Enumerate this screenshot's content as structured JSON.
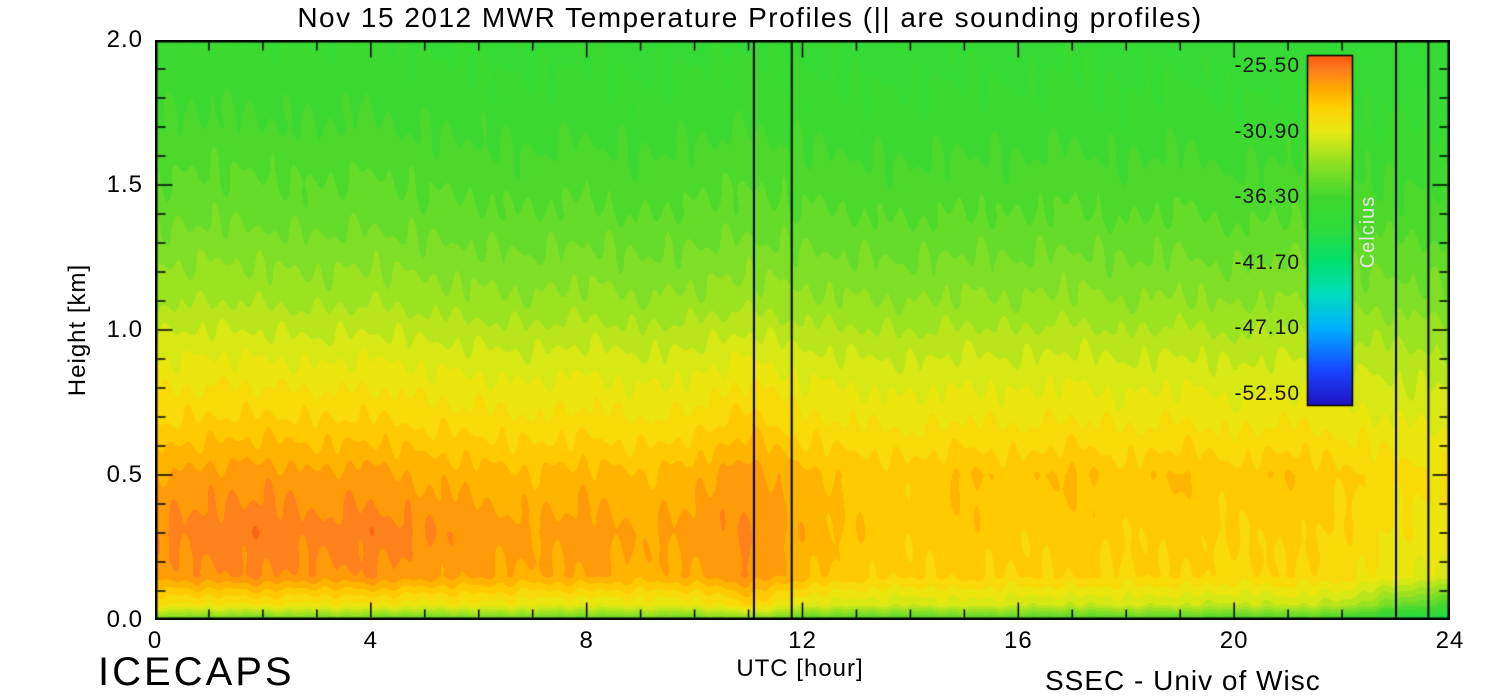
{
  "chart_data": {
    "type": "heatmap",
    "title": "Nov 15 2012 MWR Temperature Profiles (|| are sounding profiles)",
    "xlabel": "UTC [hour]",
    "ylabel": "Height [km]",
    "x_range": [
      0,
      24
    ],
    "y_range": [
      0.0,
      2.0
    ],
    "x_ticks": {
      "major": [
        0,
        4,
        8,
        12,
        16,
        20,
        24
      ],
      "labels": [
        "0",
        "4",
        "8",
        "12",
        "16",
        "20",
        "24"
      ],
      "minor_step": 1
    },
    "y_ticks": {
      "major": [
        0.0,
        0.5,
        1.0,
        1.5,
        2.0
      ],
      "labels": [
        "0.0",
        "0.5",
        "1.0",
        "1.5",
        "2.0"
      ],
      "minor_step": 0.1
    },
    "sounding_lines_utc": [
      11.1,
      11.8,
      23.0,
      23.6
    ],
    "contour_step_c": 0.9,
    "grid": {
      "hours": [
        0,
        1,
        2,
        3,
        4,
        5,
        6,
        7,
        8,
        9,
        10,
        11,
        12,
        13,
        14,
        15,
        16,
        17,
        18,
        19,
        20,
        21,
        22,
        23,
        24
      ],
      "heights_km": [
        0.0,
        0.05,
        0.15,
        0.3,
        0.5,
        0.7,
        0.9,
        1.1,
        1.4,
        1.7,
        2.0
      ],
      "temps_c": [
        [
          -34.6,
          -34.9,
          -35.1,
          -34.7,
          -35.0,
          -35.3,
          -34.9,
          -35.1,
          -35.4,
          -35.0,
          -35.2,
          -34.0,
          -35.5,
          -35.9,
          -36.1,
          -35.7,
          -36.0,
          -36.3,
          -35.9,
          -36.1,
          -36.4,
          -36.2,
          -36.6,
          -39.5,
          -41.0
        ],
        [
          -30.0,
          -30.3,
          -30.1,
          -30.4,
          -30.2,
          -30.6,
          -30.3,
          -30.7,
          -31.0,
          -30.6,
          -30.8,
          -29.2,
          -31.1,
          -31.4,
          -31.7,
          -31.3,
          -31.6,
          -31.9,
          -31.5,
          -31.8,
          -32.0,
          -31.8,
          -32.2,
          -34.5,
          -36.0
        ],
        [
          -26.9,
          -26.5,
          -26.3,
          -26.7,
          -26.4,
          -26.9,
          -27.2,
          -27.5,
          -27.2,
          -27.7,
          -27.3,
          -26.5,
          -27.9,
          -28.7,
          -29.1,
          -28.8,
          -29.2,
          -28.9,
          -29.3,
          -29.0,
          -29.4,
          -29.1,
          -29.5,
          -30.6,
          -31.2
        ],
        [
          -26.3,
          -25.9,
          -25.7,
          -26.1,
          -25.8,
          -26.4,
          -26.7,
          -27.1,
          -26.8,
          -27.3,
          -26.9,
          -26.3,
          -27.6,
          -28.4,
          -28.8,
          -28.5,
          -28.9,
          -28.6,
          -29.0,
          -28.7,
          -29.1,
          -28.8,
          -29.2,
          -30.1,
          -30.6
        ],
        [
          -27.3,
          -27.0,
          -26.8,
          -27.2,
          -26.9,
          -27.5,
          -27.8,
          -28.1,
          -27.8,
          -28.2,
          -27.7,
          -26.7,
          -28.0,
          -28.4,
          -28.7,
          -28.1,
          -28.6,
          -28.0,
          -28.7,
          -28.1,
          -28.8,
          -28.2,
          -28.9,
          -29.6,
          -30.0
        ],
        [
          -29.3,
          -29.1,
          -29.0,
          -29.2,
          -29.1,
          -29.5,
          -29.7,
          -30.0,
          -29.7,
          -30.1,
          -29.8,
          -28.8,
          -29.9,
          -30.2,
          -30.4,
          -30.1,
          -30.3,
          -30.0,
          -30.4,
          -30.1,
          -30.5,
          -30.2,
          -30.5,
          -31.0,
          -31.2
        ],
        [
          -31.0,
          -30.8,
          -30.9,
          -31.1,
          -30.9,
          -31.2,
          -31.4,
          -31.6,
          -31.3,
          -31.7,
          -31.4,
          -30.8,
          -31.5,
          -31.7,
          -31.9,
          -31.6,
          -31.8,
          -31.5,
          -31.9,
          -31.6,
          -32.0,
          -31.7,
          -32.0,
          -32.3,
          -32.5
        ],
        [
          -32.9,
          -32.7,
          -32.8,
          -33.0,
          -32.8,
          -33.1,
          -33.3,
          -33.5,
          -33.2,
          -33.6,
          -33.3,
          -33.0,
          -33.4,
          -33.5,
          -33.7,
          -33.4,
          -33.6,
          -33.3,
          -33.7,
          -33.4,
          -33.8,
          -33.5,
          -33.8,
          -34.0,
          -34.2
        ],
        [
          -34.9,
          -34.7,
          -34.8,
          -35.0,
          -34.8,
          -35.1,
          -35.2,
          -35.4,
          -35.1,
          -35.5,
          -35.2,
          -35.0,
          -35.3,
          -35.4,
          -35.6,
          -35.3,
          -35.5,
          -35.2,
          -35.6,
          -35.3,
          -35.7,
          -35.4,
          -35.7,
          -35.9,
          -36.0
        ],
        [
          -36.2,
          -36.1,
          -36.2,
          -36.3,
          -36.1,
          -36.4,
          -36.5,
          -36.7,
          -36.4,
          -36.8,
          -36.5,
          -36.3,
          -36.6,
          -36.7,
          -36.9,
          -36.6,
          -36.8,
          -36.5,
          -36.9,
          -36.6,
          -37.0,
          -36.7,
          -37.0,
          -37.1,
          -37.2
        ],
        [
          -37.1,
          -37.0,
          -37.1,
          -37.2,
          -37.0,
          -37.3,
          -37.4,
          -37.6,
          -37.3,
          -37.7,
          -37.4,
          -37.2,
          -37.5,
          -37.6,
          -37.8,
          -37.5,
          -37.7,
          -37.4,
          -37.8,
          -37.5,
          -37.9,
          -37.6,
          -37.9,
          -38.0,
          -38.1
        ]
      ]
    },
    "colormap": [
      {
        "value": -53.4,
        "color": "#2012c8"
      },
      {
        "value": -50.5,
        "color": "#1848ff"
      },
      {
        "value": -47.1,
        "color": "#00b0ff"
      },
      {
        "value": -44.3,
        "color": "#00ddc0"
      },
      {
        "value": -41.7,
        "color": "#00e070"
      },
      {
        "value": -38.9,
        "color": "#2edc3c"
      },
      {
        "value": -36.3,
        "color": "#3fd82e"
      },
      {
        "value": -33.6,
        "color": "#8ce024"
      },
      {
        "value": -30.9,
        "color": "#e6ea12"
      },
      {
        "value": -28.9,
        "color": "#ffd200"
      },
      {
        "value": -27.3,
        "color": "#ffa800"
      },
      {
        "value": -25.8,
        "color": "#ff7d1e"
      },
      {
        "value": -24.6,
        "color": "#f9560e"
      }
    ],
    "colorbar": {
      "title": "Celcius",
      "top_value": -24.6,
      "bottom_value": -53.4,
      "tick_values": [
        -25.5,
        -30.9,
        -36.3,
        -41.7,
        -47.1,
        -52.5
      ],
      "tick_labels": [
        "-25.50",
        "-30.90",
        "-36.30",
        "-41.70",
        "-47.10",
        "-52.50"
      ]
    }
  },
  "footer": {
    "project": "ICECAPS",
    "credit": "SSEC - Univ of Wisc"
  }
}
